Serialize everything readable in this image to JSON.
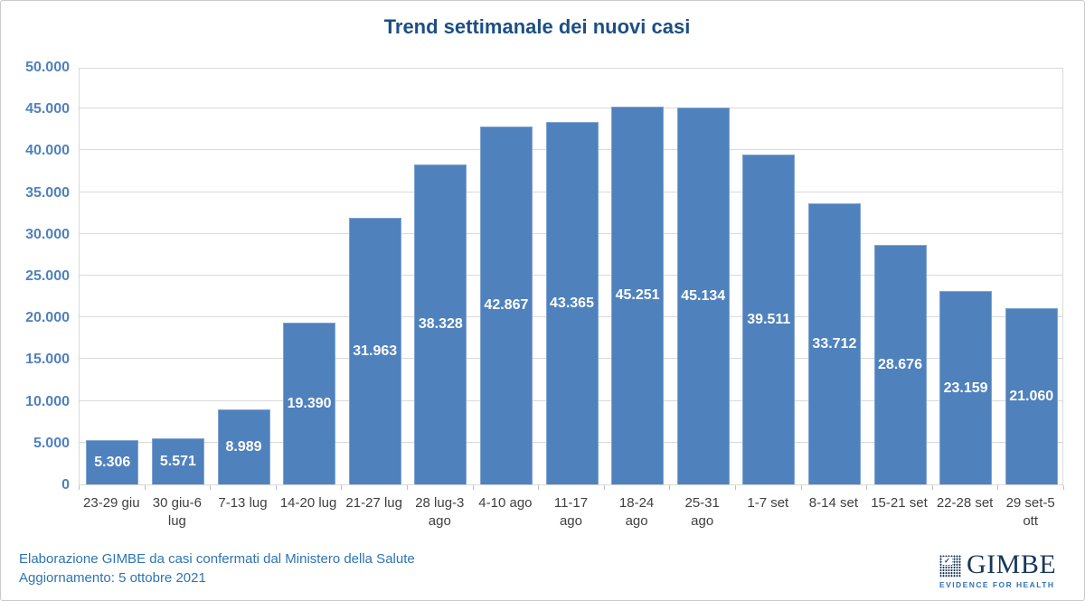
{
  "title": "Trend settimanale dei nuovi casi",
  "footer": {
    "line1": "Elaborazione GIMBE da casi confermati dal Ministero della Salute",
    "line2": "Aggiornamento: 5 ottobre 2021"
  },
  "logo": {
    "word": "GIMBE",
    "tagline": "EVIDENCE FOR HEALTH",
    "check_glyph": "✓"
  },
  "colors": {
    "bar": "#4f81bd",
    "bar_border": "#7fa3d3",
    "title": "#1b4f85",
    "axis_label": "#4f81bd",
    "category_label": "#404040",
    "data_label": "#ffffff",
    "gridline": "#d9d9d9",
    "footer_text": "#2e74b5",
    "logo_navy": "#17375e",
    "logo_blue": "#2e74b5"
  },
  "chart_data": {
    "type": "bar",
    "title": "Trend settimanale dei nuovi casi",
    "categories": [
      "23-29 giu",
      "30 giu-6\nlug",
      "7-13 lug",
      "14-20 lug",
      "21-27 lug",
      "28 lug-3\nago",
      "4-10 ago",
      "11-17\nago",
      "18-24\nago",
      "25-31\nago",
      "1-7 set",
      "8-14 set",
      "15-21 set",
      "22-28 set",
      "29 set-5\nott"
    ],
    "values": [
      5306,
      5571,
      8989,
      19390,
      31963,
      38328,
      42867,
      43365,
      45251,
      45134,
      39511,
      33712,
      28676,
      23159,
      21060
    ],
    "value_labels": [
      "5.306",
      "5.571",
      "8.989",
      "19.390",
      "31.963",
      "38.328",
      "42.867",
      "43.365",
      "45.251",
      "45.134",
      "39.511",
      "33.712",
      "28.676",
      "23.159",
      "21.060"
    ],
    "xlabel": "",
    "ylabel": "",
    "ylim": [
      0,
      50000
    ],
    "ytick_step": 5000,
    "ytick_labels": [
      "0",
      "5.000",
      "10.000",
      "15.000",
      "20.000",
      "25.000",
      "30.000",
      "35.000",
      "40.000",
      "45.000",
      "50.000"
    ],
    "grid": true,
    "legend": false,
    "bar_label_position": "inside-center"
  }
}
